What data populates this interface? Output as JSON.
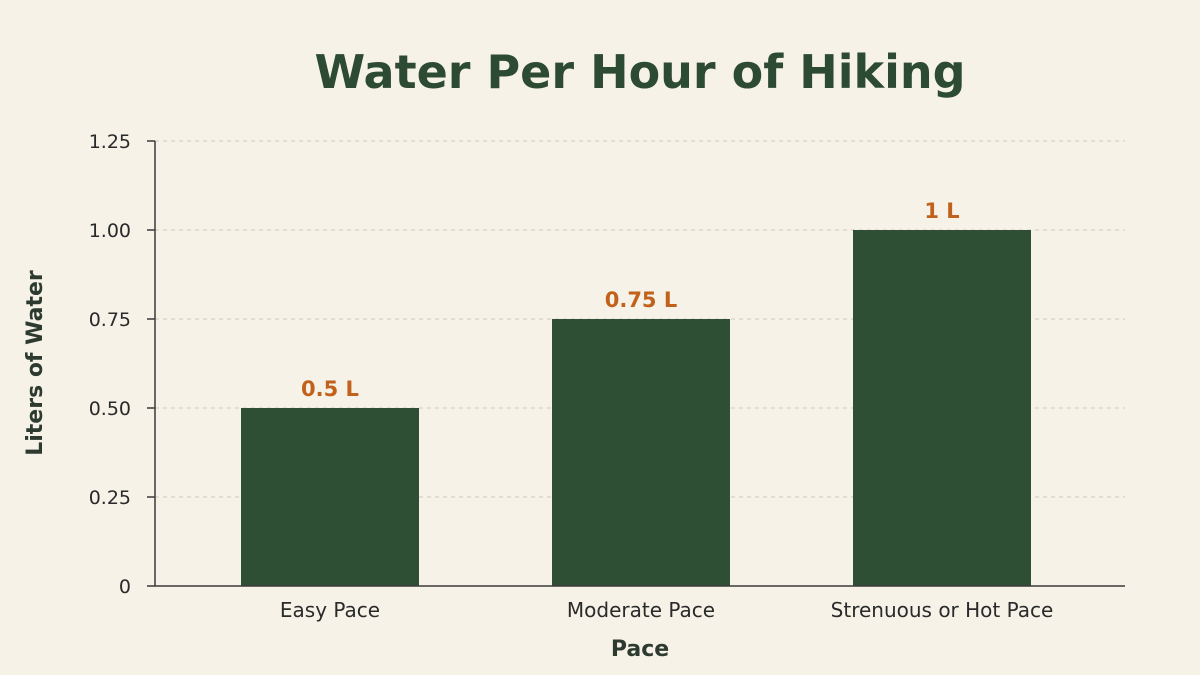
{
  "colors": {
    "background": "#f6f2e8",
    "bar": "#2f4f35",
    "title": "#2d4a33",
    "text": "#2a2a2a",
    "axis_title": "#2d3a30",
    "data_label": "#c0621c",
    "grid": "#cfcabd",
    "axis": "#3a3a3a"
  },
  "chart_data": {
    "type": "bar",
    "title": "Water Per Hour of Hiking",
    "xlabel": "Pace",
    "ylabel": "Liters of Water",
    "categories": [
      "Easy Pace",
      "Moderate Pace",
      "Strenuous or Hot Pace"
    ],
    "values": [
      0.5,
      0.75,
      1.0
    ],
    "data_labels": [
      "0.5 L",
      "0.75 L",
      "1 L"
    ],
    "ylim": [
      0,
      1.25
    ],
    "yticks": [
      0,
      0.25,
      0.5,
      0.75,
      1.0,
      1.25
    ],
    "ytick_labels": [
      "0",
      "0.25",
      "0.50",
      "0.75",
      "1.00",
      "1.25"
    ],
    "grid": true,
    "legend": "none"
  }
}
